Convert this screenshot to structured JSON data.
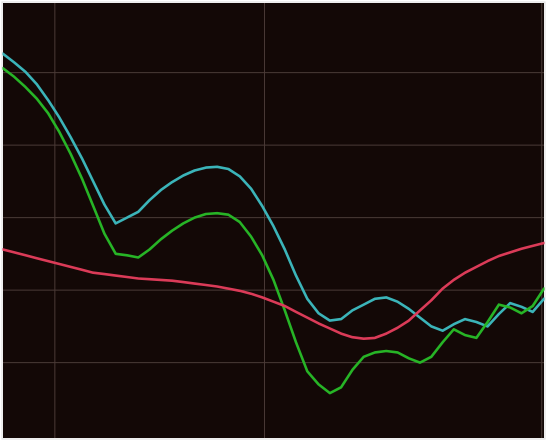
{
  "chart_data": {
    "type": "line",
    "title": "",
    "xlabel": "",
    "ylabel": "",
    "grid": true,
    "xlim": [
      0,
      48
    ],
    "ylim": [
      0,
      6
    ],
    "colors": {
      "background": "#130806",
      "grid": "#4a3a36",
      "border": "#dcdcdc"
    },
    "x": [
      0,
      1,
      2,
      3,
      4,
      5,
      6,
      7,
      8,
      9,
      10,
      11,
      12,
      13,
      14,
      15,
      16,
      17,
      18,
      19,
      20,
      21,
      22,
      23,
      24,
      25,
      26,
      27,
      28,
      29,
      30,
      31,
      32,
      33,
      34,
      35,
      36,
      37,
      38,
      39,
      40,
      41,
      42,
      43,
      44,
      45,
      46,
      47,
      48
    ],
    "series": [
      {
        "color": "#3bb4b9",
        "values": [
          5.3,
          5.18,
          5.05,
          4.88,
          4.66,
          4.42,
          4.15,
          3.86,
          3.54,
          3.22,
          2.96,
          3.04,
          3.12,
          3.28,
          3.42,
          3.53,
          3.62,
          3.69,
          3.73,
          3.74,
          3.71,
          3.61,
          3.44,
          3.2,
          2.92,
          2.6,
          2.24,
          1.92,
          1.72,
          1.62,
          1.64,
          1.76,
          1.84,
          1.92,
          1.94,
          1.88,
          1.78,
          1.66,
          1.54,
          1.48,
          1.57,
          1.64,
          1.6,
          1.54,
          1.71,
          1.86,
          1.81,
          1.74,
          1.92
        ]
      },
      {
        "color": "#27b426",
        "values": [
          5.1,
          4.98,
          4.84,
          4.68,
          4.48,
          4.22,
          3.92,
          3.58,
          3.2,
          2.82,
          2.54,
          2.52,
          2.49,
          2.6,
          2.74,
          2.86,
          2.96,
          3.04,
          3.09,
          3.1,
          3.08,
          2.98,
          2.78,
          2.52,
          2.18,
          1.76,
          1.32,
          0.92,
          0.74,
          0.62,
          0.7,
          0.94,
          1.12,
          1.18,
          1.2,
          1.18,
          1.1,
          1.04,
          1.12,
          1.32,
          1.5,
          1.42,
          1.38,
          1.6,
          1.84,
          1.8,
          1.72,
          1.82,
          2.06
        ]
      },
      {
        "color": "#db3b58",
        "values": [
          2.6,
          2.56,
          2.52,
          2.48,
          2.44,
          2.4,
          2.36,
          2.32,
          2.28,
          2.26,
          2.24,
          2.22,
          2.2,
          2.19,
          2.18,
          2.17,
          2.15,
          2.13,
          2.11,
          2.09,
          2.06,
          2.03,
          1.99,
          1.94,
          1.88,
          1.82,
          1.74,
          1.66,
          1.58,
          1.51,
          1.44,
          1.39,
          1.37,
          1.38,
          1.44,
          1.52,
          1.62,
          1.76,
          1.9,
          2.06,
          2.18,
          2.28,
          2.36,
          2.44,
          2.51,
          2.56,
          2.61,
          2.65,
          2.69
        ]
      }
    ]
  }
}
